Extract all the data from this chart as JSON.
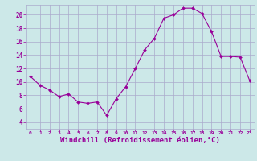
{
  "hours": [
    0,
    1,
    2,
    3,
    4,
    5,
    6,
    7,
    8,
    9,
    10,
    11,
    12,
    13,
    14,
    15,
    16,
    17,
    18,
    19,
    20,
    21,
    22,
    23
  ],
  "values": [
    10.8,
    9.5,
    8.8,
    7.8,
    8.2,
    7.0,
    6.8,
    7.0,
    5.0,
    7.5,
    9.3,
    12.0,
    14.8,
    16.5,
    19.5,
    20.0,
    21.0,
    21.0,
    20.2,
    17.5,
    13.8,
    13.8,
    13.7,
    10.2
  ],
  "line_color": "#990099",
  "marker": "D",
  "marker_size": 2,
  "bg_color": "#cce8e8",
  "grid_color": "#aaaacc",
  "xlabel": "Windchill (Refroidissement éolien,°C)",
  "xlabel_color": "#990099",
  "tick_color": "#990099",
  "xlabel_fontsize": 6.5,
  "ylim": [
    3,
    21.5
  ],
  "xlim": [
    -0.5,
    23.5
  ],
  "yticks": [
    4,
    6,
    8,
    10,
    12,
    14,
    16,
    18,
    20
  ],
  "xticks": [
    0,
    1,
    2,
    3,
    4,
    5,
    6,
    7,
    8,
    9,
    10,
    11,
    12,
    13,
    14,
    15,
    16,
    17,
    18,
    19,
    20,
    21,
    22,
    23
  ]
}
